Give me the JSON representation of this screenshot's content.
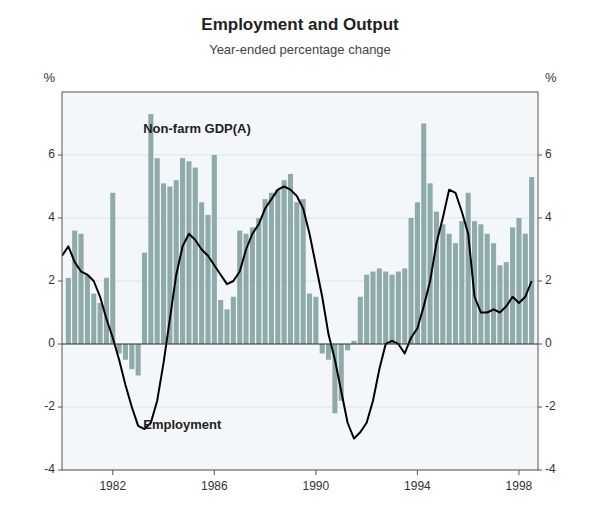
{
  "chart_data": {
    "type": "bar",
    "title": "Employment and Output",
    "subtitle": "Year-ended percentage change",
    "ylabel": "%",
    "y2label": "%",
    "xlim": [
      1980.0,
      1998.75
    ],
    "xticks": [
      1982,
      1986,
      1990,
      1994,
      1998
    ],
    "ylim": [
      -4,
      8
    ],
    "yticks": [
      -4,
      -2,
      0,
      2,
      4,
      6
    ],
    "y2lim": [
      -4,
      8
    ],
    "y2ticks": [
      -4,
      -2,
      0,
      2,
      4,
      6
    ],
    "grid": true,
    "series": [
      {
        "type": "bar",
        "color": "#8faaaa",
        "x": [
          1980.25,
          1980.5,
          1980.75,
          1981.0,
          1981.25,
          1981.5,
          1981.75,
          1982.0,
          1982.25,
          1982.5,
          1982.75,
          1983.0,
          1983.25,
          1983.5,
          1983.75,
          1984.0,
          1984.25,
          1984.5,
          1984.75,
          1985.0,
          1985.25,
          1985.5,
          1985.75,
          1986.0,
          1986.25,
          1986.5,
          1986.75,
          1987.0,
          1987.25,
          1987.5,
          1987.75,
          1988.0,
          1988.25,
          1988.5,
          1988.75,
          1989.0,
          1989.25,
          1989.5,
          1989.75,
          1990.0,
          1990.25,
          1990.5,
          1990.75,
          1991.0,
          1991.25,
          1991.5,
          1991.75,
          1992.0,
          1992.25,
          1992.5,
          1992.75,
          1993.0,
          1993.25,
          1993.5,
          1993.75,
          1994.0,
          1994.25,
          1994.5,
          1994.75,
          1995.0,
          1995.25,
          1995.5,
          1995.75,
          1996.0,
          1996.25,
          1996.5,
          1996.75,
          1997.0,
          1997.25,
          1997.5,
          1997.75,
          1998.0,
          1998.25,
          1998.5
        ],
        "values": [
          2.1,
          3.6,
          3.5,
          2.2,
          1.6,
          1.3,
          2.1,
          4.8,
          -0.3,
          -0.5,
          -0.8,
          -1.0,
          2.9,
          7.3,
          5.9,
          5.1,
          5.0,
          5.2,
          5.9,
          5.8,
          5.6,
          4.5,
          4.1,
          6.0,
          1.4,
          1.1,
          1.5,
          3.6,
          3.5,
          3.7,
          4.0,
          4.6,
          4.8,
          4.9,
          5.2,
          5.4,
          4.5,
          4.6,
          1.6,
          1.5,
          -0.3,
          -0.5,
          -2.2,
          -1.8,
          -0.2,
          0.1,
          1.5,
          2.2,
          2.3,
          2.4,
          2.3,
          2.2,
          2.3,
          2.4,
          4.0,
          4.5,
          7.0,
          5.1,
          4.2,
          3.8,
          3.5,
          3.2,
          3.9,
          4.8,
          3.9,
          3.8,
          3.5,
          3.2,
          2.5,
          2.6,
          3.7,
          4.0,
          3.5,
          5.3
        ]
      },
      {
        "type": "line",
        "color": "#000000",
        "x": [
          1980.0,
          1980.25,
          1980.5,
          1980.75,
          1981.0,
          1981.25,
          1981.5,
          1981.75,
          1982.0,
          1982.25,
          1982.5,
          1982.75,
          1983.0,
          1983.25,
          1983.5,
          1983.75,
          1984.0,
          1984.25,
          1984.5,
          1984.75,
          1985.0,
          1985.25,
          1985.5,
          1985.75,
          1986.0,
          1986.25,
          1986.5,
          1986.75,
          1987.0,
          1987.25,
          1987.5,
          1987.75,
          1988.0,
          1988.25,
          1988.5,
          1988.75,
          1989.0,
          1989.25,
          1989.5,
          1989.75,
          1990.0,
          1990.25,
          1990.5,
          1990.75,
          1991.0,
          1991.25,
          1991.5,
          1991.75,
          1992.0,
          1992.25,
          1992.5,
          1992.75,
          1993.0,
          1993.25,
          1993.5,
          1993.75,
          1994.0,
          1994.25,
          1994.5,
          1994.75,
          1995.0,
          1995.25,
          1995.5,
          1995.75,
          1996.0,
          1996.25,
          1996.5,
          1996.75,
          1997.0,
          1997.25,
          1997.5,
          1997.75,
          1998.0,
          1998.25,
          1998.5
        ],
        "values": [
          2.8,
          3.1,
          2.6,
          2.3,
          2.2,
          2.0,
          1.5,
          0.8,
          0.2,
          -0.5,
          -1.3,
          -2.0,
          -2.6,
          -2.7,
          -2.5,
          -1.8,
          -0.6,
          0.8,
          2.2,
          3.1,
          3.5,
          3.3,
          3.0,
          2.8,
          2.5,
          2.2,
          1.9,
          2.0,
          2.3,
          3.0,
          3.5,
          3.8,
          4.3,
          4.6,
          4.9,
          5.0,
          4.9,
          4.7,
          4.3,
          3.5,
          2.5,
          1.5,
          0.3,
          -0.5,
          -1.5,
          -2.5,
          -3.0,
          -2.8,
          -2.5,
          -1.8,
          -0.8,
          0.0,
          0.1,
          0.0,
          -0.3,
          0.2,
          0.5,
          1.2,
          2.0,
          3.2,
          4.0,
          4.9,
          4.8,
          4.2,
          3.5,
          1.5,
          1.0,
          1.0,
          1.1,
          1.0,
          1.2,
          1.5,
          1.3,
          1.5,
          2.0
        ]
      }
    ],
    "annotations": [
      {
        "text": "Non-farm GDP(A)",
        "x": 1983.2,
        "y": 6.6
      },
      {
        "text": "Employment",
        "x": 1983.2,
        "y": -2.3
      }
    ]
  }
}
